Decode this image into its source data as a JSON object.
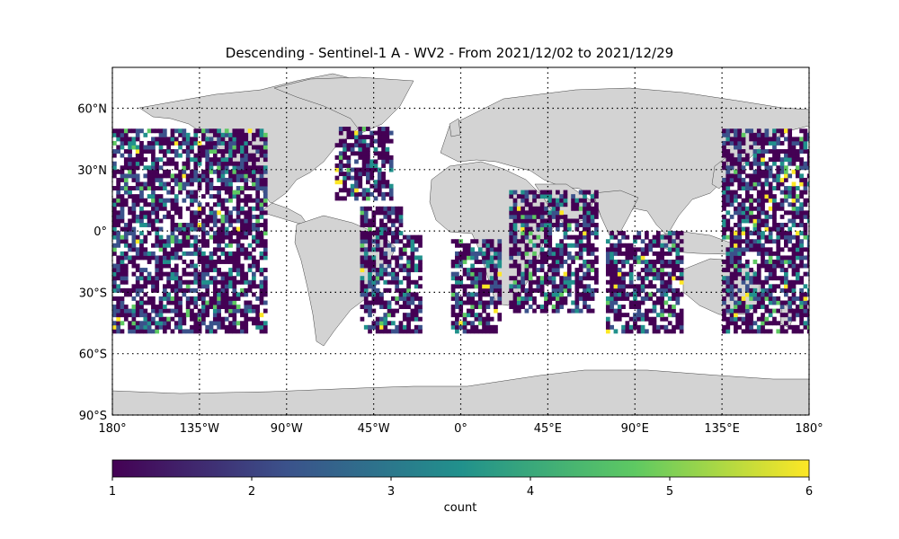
{
  "title": "Descending - Sentinel-1 A - WV2 - From 2021/12/02 to 2021/12/29",
  "map": {
    "projection": "plate-carree",
    "lon_range": [
      -180,
      180
    ],
    "lat_range": [
      -90,
      80
    ],
    "grid": "dotted",
    "land_color": "#d3d3d3",
    "ocean_color": "#ffffff",
    "lon_ticks": [
      {
        "value": -180,
        "label": "180°"
      },
      {
        "value": -135,
        "label": "135°W"
      },
      {
        "value": -90,
        "label": "90°W"
      },
      {
        "value": -45,
        "label": "45°W"
      },
      {
        "value": 0,
        "label": "0°"
      },
      {
        "value": 45,
        "label": "45°E"
      },
      {
        "value": 90,
        "label": "90°E"
      },
      {
        "value": 135,
        "label": "135°E"
      },
      {
        "value": 180,
        "label": "180°"
      }
    ],
    "lat_ticks": [
      {
        "value": 60,
        "label": "60°N"
      },
      {
        "value": 30,
        "label": "30°N"
      },
      {
        "value": 0,
        "label": "0°"
      },
      {
        "value": -30,
        "label": "30°S"
      },
      {
        "value": -60,
        "label": "60°S"
      },
      {
        "value": -90,
        "label": "90°S"
      }
    ]
  },
  "chart_data": {
    "type": "heatmap",
    "value_name": "count",
    "colormap": "viridis",
    "vmin": 1,
    "vmax": 6,
    "cell_size_deg": 2,
    "coverage_regions": [
      {
        "lon": [
          -180,
          -100
        ],
        "lat": [
          -50,
          50
        ]
      },
      {
        "lon": [
          -65,
          -35
        ],
        "lat": [
          15,
          50
        ]
      },
      {
        "lon": [
          -52,
          -30
        ],
        "lat": [
          -50,
          12
        ]
      },
      {
        "lon": [
          -30,
          -20
        ],
        "lat": [
          -50,
          -2
        ]
      },
      {
        "lon": [
          -5,
          20
        ],
        "lat": [
          -50,
          -5
        ]
      },
      {
        "lon": [
          25,
          70
        ],
        "lat": [
          -40,
          20
        ]
      },
      {
        "lon": [
          75,
          115
        ],
        "lat": [
          -50,
          0
        ]
      },
      {
        "lon": [
          135,
          180
        ],
        "lat": [
          -50,
          50
        ]
      }
    ]
  },
  "colorbar": {
    "label": "count",
    "ticks": [
      "1",
      "2",
      "3",
      "4",
      "5",
      "6"
    ],
    "colors": [
      "#440154",
      "#3b528b",
      "#21918c",
      "#5ec962",
      "#fde725"
    ]
  }
}
